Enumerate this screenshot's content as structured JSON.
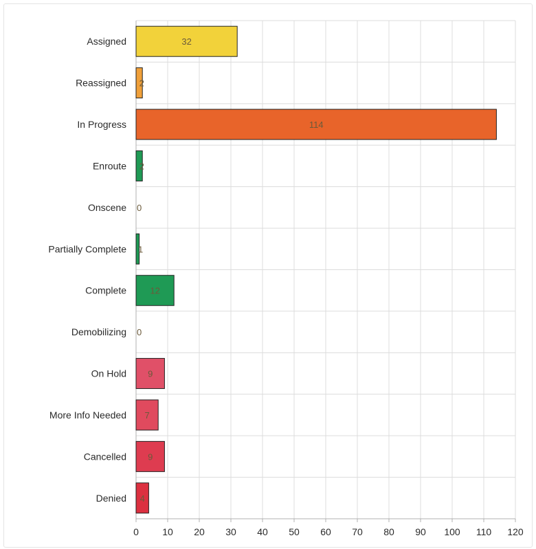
{
  "chart_data": {
    "type": "bar",
    "orientation": "horizontal",
    "title": "",
    "xlabel": "",
    "ylabel": "",
    "xlim": [
      0,
      120
    ],
    "x_ticks": [
      0,
      10,
      20,
      30,
      40,
      50,
      60,
      70,
      80,
      90,
      100,
      110,
      120
    ],
    "grid": true,
    "legend": "none",
    "categories": [
      "Assigned",
      "Reassigned",
      "In Progress",
      "Enroute",
      "Onscene",
      "Partially Complete",
      "Complete",
      "Demobilizing",
      "On Hold",
      "More Info Needed",
      "Cancelled",
      "Denied"
    ],
    "values": [
      32,
      2,
      114,
      2,
      0,
      1,
      12,
      0,
      9,
      7,
      9,
      4
    ],
    "colors": [
      "#f2d23a",
      "#f0a03a",
      "#e8642a",
      "#1f9a55",
      "#1f9a55",
      "#1f9a55",
      "#1f9a55",
      "#1f9a55",
      "#e05068",
      "#e04a5e",
      "#de3c50",
      "#dc3040"
    ]
  }
}
